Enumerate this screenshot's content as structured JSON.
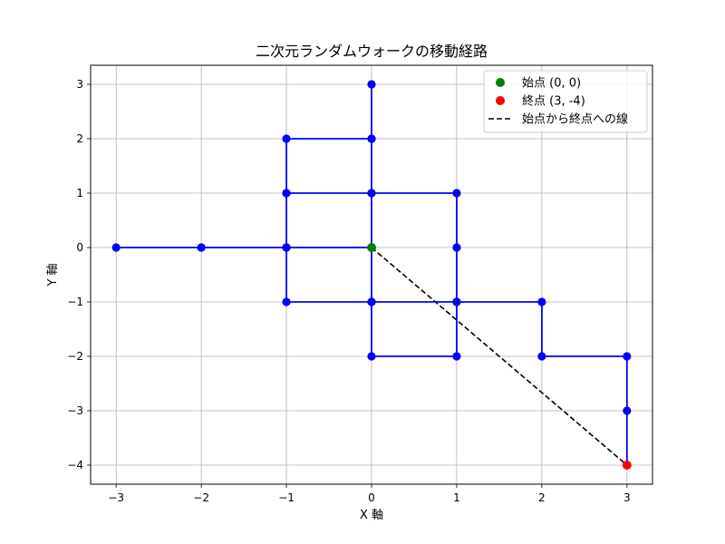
{
  "chart_data": {
    "type": "line",
    "title": "二次元ランダムウォークの移動経路",
    "xlabel": "X 軸",
    "ylabel": "Y 軸",
    "xlim": [
      -3.3,
      3.3
    ],
    "ylim": [
      -4.35,
      3.35
    ],
    "x_ticks": [
      -3,
      -2,
      -1,
      0,
      1,
      2,
      3
    ],
    "y_ticks": [
      -4,
      -3,
      -2,
      -1,
      0,
      1,
      2,
      3
    ],
    "x_tick_labels": [
      "−3",
      "−2",
      "−1",
      "0",
      "1",
      "2",
      "3"
    ],
    "y_tick_labels": [
      "−4",
      "−3",
      "−2",
      "−1",
      "0",
      "1",
      "2",
      "3"
    ],
    "grid": true,
    "legend_position": "top-right",
    "colors": {
      "path": "#0000ff",
      "start": "#008000",
      "end": "#ff0000",
      "line": "#000000",
      "grid": "#b0b0b0"
    },
    "path": [
      [
        0,
        0
      ],
      [
        -1,
        0
      ],
      [
        -2,
        0
      ],
      [
        -3,
        0
      ],
      [
        -2,
        0
      ],
      [
        -1,
        0
      ],
      [
        -1,
        1
      ],
      [
        -1,
        2
      ],
      [
        0,
        2
      ],
      [
        0,
        3
      ],
      [
        0,
        2
      ],
      [
        0,
        1
      ],
      [
        -1,
        1
      ],
      [
        -1,
        0
      ],
      [
        -1,
        -1
      ],
      [
        0,
        -1
      ],
      [
        0,
        -2
      ],
      [
        1,
        -2
      ],
      [
        1,
        -1
      ],
      [
        0,
        -1
      ],
      [
        0,
        0
      ],
      [
        0,
        1
      ],
      [
        1,
        1
      ],
      [
        1,
        0
      ],
      [
        1,
        -1
      ],
      [
        2,
        -1
      ],
      [
        2,
        -2
      ],
      [
        3,
        -2
      ],
      [
        3,
        -3
      ],
      [
        3,
        -4
      ]
    ],
    "start": [
      0,
      0
    ],
    "end": [
      3,
      -4
    ],
    "legend": [
      {
        "label": "始点 (0, 0)",
        "kind": "marker",
        "color": "#008000"
      },
      {
        "label": "終点 (3, -4)",
        "kind": "marker",
        "color": "#ff0000"
      },
      {
        "label": "始点から終点への線",
        "kind": "dashed",
        "color": "#000000"
      }
    ]
  }
}
